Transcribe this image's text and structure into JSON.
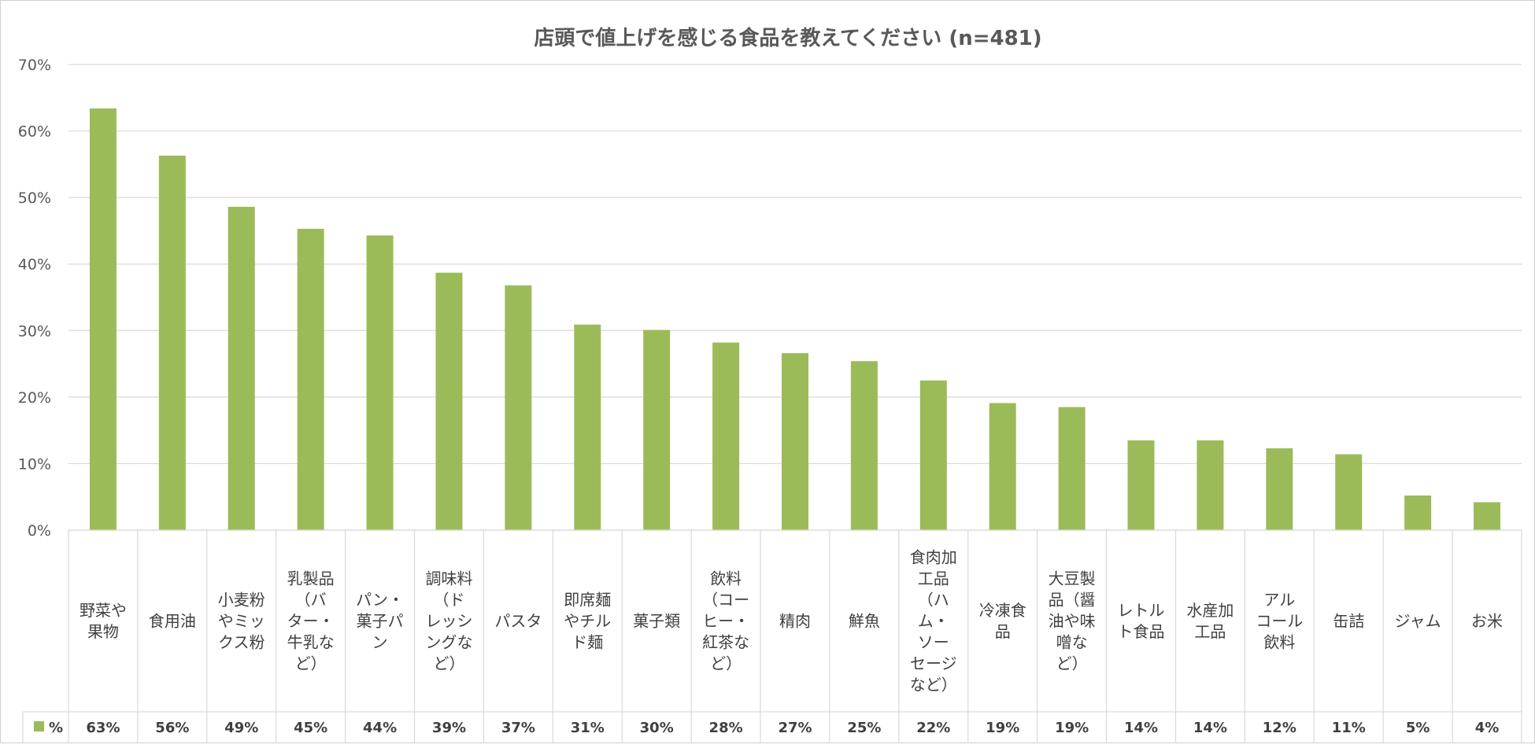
{
  "colors": {
    "bar": "#9BBB59",
    "grid": "#d9d9d9",
    "text": "#595959"
  },
  "chart_data": {
    "type": "bar",
    "title": "店頭で値上げを感じる食品を教えてください (n=481)",
    "xlabel": "",
    "ylabel": "",
    "ylim": [
      0,
      70
    ],
    "yticks": [
      0,
      10,
      20,
      30,
      40,
      50,
      60,
      70
    ],
    "ytick_labels": [
      "0%",
      "10%",
      "20%",
      "30%",
      "40%",
      "50%",
      "60%",
      "70%"
    ],
    "grid": true,
    "categories": [
      [
        "野菜や",
        "果物"
      ],
      [
        "食用油"
      ],
      [
        "小麦粉",
        "やミッ",
        "クス粉"
      ],
      [
        "乳製品",
        "（バ",
        "ター・",
        "牛乳な",
        "ど）"
      ],
      [
        "パン・",
        "菓子パ",
        "ン"
      ],
      [
        "調味料",
        "（ド",
        "レッシ",
        "ングな",
        "ど）"
      ],
      [
        "パスタ"
      ],
      [
        "即席麺",
        "やチル",
        "ド麺"
      ],
      [
        "菓子類"
      ],
      [
        "飲料",
        "（コー",
        "ヒー・",
        "紅茶な",
        "ど）"
      ],
      [
        "精肉"
      ],
      [
        "鮮魚"
      ],
      [
        "食肉加",
        "工品",
        "（ハ",
        "ム・",
        "ソー",
        "セージ",
        "など）"
      ],
      [
        "冷凍食",
        "品"
      ],
      [
        "大豆製",
        "品（醤",
        "油や味",
        "噌な",
        "ど）"
      ],
      [
        "レトル",
        "ト食品"
      ],
      [
        "水産加",
        "工品"
      ],
      [
        "アル",
        "コール",
        "飲料"
      ],
      [
        "缶詰"
      ],
      [
        "ジャム"
      ],
      [
        "お米"
      ]
    ],
    "series": [
      {
        "name": "%",
        "values": [
          63.4,
          56.3,
          48.6,
          45.3,
          44.3,
          38.7,
          36.8,
          30.9,
          30.1,
          28.2,
          26.6,
          25.4,
          22.5,
          19.1,
          18.5,
          13.5,
          13.5,
          12.3,
          11.4,
          5.2,
          4.2
        ],
        "labels": [
          "63%",
          "56%",
          "49%",
          "45%",
          "44%",
          "39%",
          "37%",
          "31%",
          "30%",
          "28%",
          "27%",
          "25%",
          "22%",
          "19%",
          "19%",
          "14%",
          "14%",
          "12%",
          "11%",
          "5%",
          "4%"
        ]
      }
    ],
    "legend": "data-table"
  }
}
